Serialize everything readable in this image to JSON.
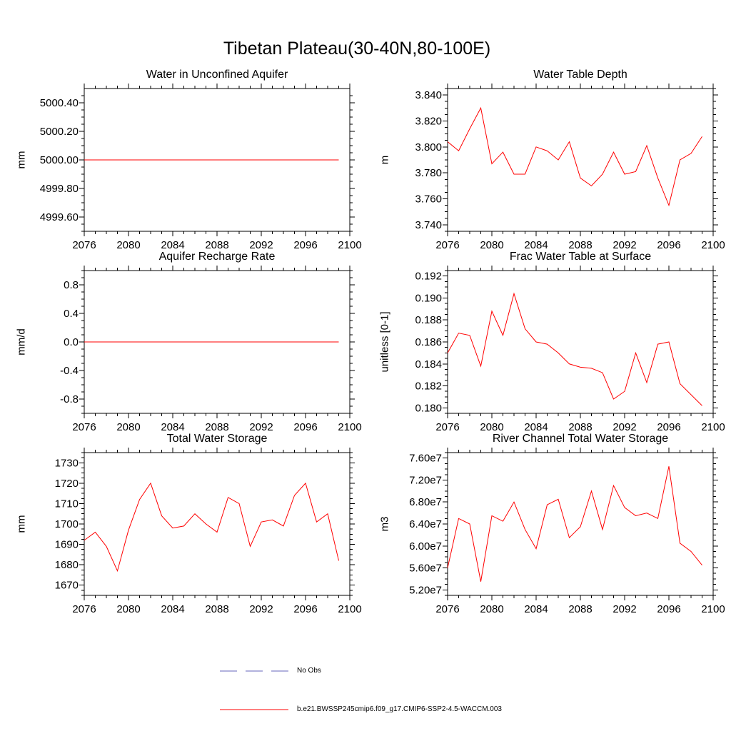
{
  "header": {
    "title": "Tibetan Plateau(30-40N,80-100E)"
  },
  "chart_data": [
    {
      "type": "line",
      "title": "Water in Unconfined Aquifer",
      "ylabel": "mm",
      "xlim": [
        2076,
        2100
      ],
      "ylim": [
        4999.5,
        5000.5
      ],
      "xminor_step": 1,
      "yminor_step": 0.05,
      "xticks": [
        {
          "v": 2076,
          "label": "2076"
        },
        {
          "v": 2080,
          "label": "2080"
        },
        {
          "v": 2084,
          "label": "2084"
        },
        {
          "v": 2088,
          "label": "2088"
        },
        {
          "v": 2092,
          "label": "2092"
        },
        {
          "v": 2096,
          "label": "2096"
        },
        {
          "v": 2100,
          "label": "2100"
        }
      ],
      "yticks": [
        {
          "v": 4999.6,
          "label": "4999.60"
        },
        {
          "v": 4999.8,
          "label": "4999.80"
        },
        {
          "v": 5000.0,
          "label": "5000.00"
        },
        {
          "v": 5000.2,
          "label": "5000.20"
        },
        {
          "v": 5000.4,
          "label": "5000.40"
        }
      ],
      "x": [
        2076,
        2077,
        2078,
        2079,
        2080,
        2081,
        2082,
        2083,
        2084,
        2085,
        2086,
        2087,
        2088,
        2089,
        2090,
        2091,
        2092,
        2093,
        2094,
        2095,
        2096,
        2097,
        2098,
        2099
      ],
      "series": [
        {
          "name": "b.e21.BWSSP245cmip6.f09_g17.CMIP6-SSP2-4.5-WACCM.003",
          "color": "#ff0000",
          "values": [
            5000,
            5000,
            5000,
            5000,
            5000,
            5000,
            5000,
            5000,
            5000,
            5000,
            5000,
            5000,
            5000,
            5000,
            5000,
            5000,
            5000,
            5000,
            5000,
            5000,
            5000,
            5000,
            5000,
            5000
          ]
        }
      ]
    },
    {
      "type": "line",
      "title": "Water Table Depth",
      "ylabel": "m",
      "xlim": [
        2076,
        2100
      ],
      "ylim": [
        3.735,
        3.845
      ],
      "xminor_step": 1,
      "yminor_step": 0.005,
      "xticks": [
        {
          "v": 2076,
          "label": "2076"
        },
        {
          "v": 2080,
          "label": "2080"
        },
        {
          "v": 2084,
          "label": "2084"
        },
        {
          "v": 2088,
          "label": "2088"
        },
        {
          "v": 2092,
          "label": "2092"
        },
        {
          "v": 2096,
          "label": "2096"
        },
        {
          "v": 2100,
          "label": "2100"
        }
      ],
      "yticks": [
        {
          "v": 3.74,
          "label": "3.740"
        },
        {
          "v": 3.76,
          "label": "3.760"
        },
        {
          "v": 3.78,
          "label": "3.780"
        },
        {
          "v": 3.8,
          "label": "3.800"
        },
        {
          "v": 3.82,
          "label": "3.820"
        },
        {
          "v": 3.84,
          "label": "3.840"
        }
      ],
      "x": [
        2076,
        2077,
        2078,
        2079,
        2080,
        2081,
        2082,
        2083,
        2084,
        2085,
        2086,
        2087,
        2088,
        2089,
        2090,
        2091,
        2092,
        2093,
        2094,
        2095,
        2096,
        2097,
        2098,
        2099
      ],
      "series": [
        {
          "name": "b.e21.BWSSP245cmip6.f09_g17.CMIP6-SSP2-4.5-WACCM.003",
          "color": "#ff0000",
          "values": [
            3.804,
            3.797,
            3.814,
            3.83,
            3.787,
            3.796,
            3.779,
            3.779,
            3.8,
            3.797,
            3.79,
            3.804,
            3.776,
            3.77,
            3.779,
            3.796,
            3.779,
            3.781,
            3.801,
            3.776,
            3.755,
            3.79,
            3.795,
            3.808
          ]
        }
      ]
    },
    {
      "type": "line",
      "title": "Aquifer Recharge Rate",
      "ylabel": "mm/d",
      "xlim": [
        2076,
        2100
      ],
      "ylim": [
        -1.0,
        1.0
      ],
      "xminor_step": 1,
      "yminor_step": 0.1,
      "xticks": [
        {
          "v": 2076,
          "label": "2076"
        },
        {
          "v": 2080,
          "label": "2080"
        },
        {
          "v": 2084,
          "label": "2084"
        },
        {
          "v": 2088,
          "label": "2088"
        },
        {
          "v": 2092,
          "label": "2092"
        },
        {
          "v": 2096,
          "label": "2096"
        },
        {
          "v": 2100,
          "label": "2100"
        }
      ],
      "yticks": [
        {
          "v": -0.8,
          "label": "-0.8"
        },
        {
          "v": -0.4,
          "label": "-0.4"
        },
        {
          "v": 0.0,
          "label": "0.0"
        },
        {
          "v": 0.4,
          "label": "0.4"
        },
        {
          "v": 0.8,
          "label": "0.8"
        }
      ],
      "x": [
        2076,
        2077,
        2078,
        2079,
        2080,
        2081,
        2082,
        2083,
        2084,
        2085,
        2086,
        2087,
        2088,
        2089,
        2090,
        2091,
        2092,
        2093,
        2094,
        2095,
        2096,
        2097,
        2098,
        2099
      ],
      "series": [
        {
          "name": "b.e21.BWSSP245cmip6.f09_g17.CMIP6-SSP2-4.5-WACCM.003",
          "color": "#ff0000",
          "values": [
            0,
            0,
            0,
            0,
            0,
            0,
            0,
            0,
            0,
            0,
            0,
            0,
            0,
            0,
            0,
            0,
            0,
            0,
            0,
            0,
            0,
            0,
            0,
            0
          ]
        }
      ]
    },
    {
      "type": "line",
      "title": "Frac Water Table at Surface",
      "ylabel": "unitless [0-1]",
      "xlim": [
        2076,
        2100
      ],
      "ylim": [
        0.1795,
        0.1925
      ],
      "xminor_step": 1,
      "yminor_step": 0.0005,
      "xticks": [
        {
          "v": 2076,
          "label": "2076"
        },
        {
          "v": 2080,
          "label": "2080"
        },
        {
          "v": 2084,
          "label": "2084"
        },
        {
          "v": 2088,
          "label": "2088"
        },
        {
          "v": 2092,
          "label": "2092"
        },
        {
          "v": 2096,
          "label": "2096"
        },
        {
          "v": 2100,
          "label": "2100"
        }
      ],
      "yticks": [
        {
          "v": 0.18,
          "label": "0.180"
        },
        {
          "v": 0.182,
          "label": "0.182"
        },
        {
          "v": 0.184,
          "label": "0.184"
        },
        {
          "v": 0.186,
          "label": "0.186"
        },
        {
          "v": 0.188,
          "label": "0.188"
        },
        {
          "v": 0.19,
          "label": "0.190"
        },
        {
          "v": 0.192,
          "label": "0.192"
        }
      ],
      "x": [
        2076,
        2077,
        2078,
        2079,
        2080,
        2081,
        2082,
        2083,
        2084,
        2085,
        2086,
        2087,
        2088,
        2089,
        2090,
        2091,
        2092,
        2093,
        2094,
        2095,
        2096,
        2097,
        2098,
        2099
      ],
      "series": [
        {
          "name": "b.e21.BWSSP245cmip6.f09_g17.CMIP6-SSP2-4.5-WACCM.003",
          "color": "#ff0000",
          "values": [
            0.185,
            0.1868,
            0.1866,
            0.1838,
            0.1888,
            0.1866,
            0.1904,
            0.1872,
            0.186,
            0.1858,
            0.185,
            0.184,
            0.1837,
            0.1836,
            0.1832,
            0.1808,
            0.1815,
            0.185,
            0.1823,
            0.1858,
            0.186,
            0.1822,
            0.1812,
            0.1802
          ]
        }
      ]
    },
    {
      "type": "line",
      "title": "Total Water Storage",
      "ylabel": "mm",
      "xlim": [
        2076,
        2100
      ],
      "ylim": [
        1665,
        1735
      ],
      "xminor_step": 1,
      "yminor_step": 2.5,
      "xticks": [
        {
          "v": 2076,
          "label": "2076"
        },
        {
          "v": 2080,
          "label": "2080"
        },
        {
          "v": 2084,
          "label": "2084"
        },
        {
          "v": 2088,
          "label": "2088"
        },
        {
          "v": 2092,
          "label": "2092"
        },
        {
          "v": 2096,
          "label": "2096"
        },
        {
          "v": 2100,
          "label": "2100"
        }
      ],
      "yticks": [
        {
          "v": 1670,
          "label": "1670"
        },
        {
          "v": 1680,
          "label": "1680"
        },
        {
          "v": 1690,
          "label": "1690"
        },
        {
          "v": 1700,
          "label": "1700"
        },
        {
          "v": 1710,
          "label": "1710"
        },
        {
          "v": 1720,
          "label": "1720"
        },
        {
          "v": 1730,
          "label": "1730"
        }
      ],
      "x": [
        2076,
        2077,
        2078,
        2079,
        2080,
        2081,
        2082,
        2083,
        2084,
        2085,
        2086,
        2087,
        2088,
        2089,
        2090,
        2091,
        2092,
        2093,
        2094,
        2095,
        2096,
        2097,
        2098,
        2099
      ],
      "series": [
        {
          "name": "b.e21.BWSSP245cmip6.f09_g17.CMIP6-SSP2-4.5-WACCM.003",
          "color": "#ff0000",
          "values": [
            1692,
            1696,
            1689,
            1677,
            1697,
            1712,
            1720,
            1704,
            1698,
            1699,
            1705,
            1700,
            1696,
            1713,
            1710,
            1689,
            1701,
            1702,
            1699,
            1714,
            1720,
            1701,
            1705,
            1682
          ]
        }
      ]
    },
    {
      "type": "line",
      "title": "River Channel Total Water Storage",
      "ylabel": "m3",
      "xlim": [
        2076,
        2100
      ],
      "ylim": [
        51000000.0,
        77000000.0
      ],
      "xminor_step": 1,
      "yminor_step": 1000000.0,
      "xticks": [
        {
          "v": 2076,
          "label": "2076"
        },
        {
          "v": 2080,
          "label": "2080"
        },
        {
          "v": 2084,
          "label": "2084"
        },
        {
          "v": 2088,
          "label": "2088"
        },
        {
          "v": 2092,
          "label": "2092"
        },
        {
          "v": 2096,
          "label": "2096"
        },
        {
          "v": 2100,
          "label": "2100"
        }
      ],
      "yticks": [
        {
          "v": 52000000.0,
          "label": "5.20e7"
        },
        {
          "v": 56000000.0,
          "label": "5.60e7"
        },
        {
          "v": 60000000.0,
          "label": "6.00e7"
        },
        {
          "v": 64000000.0,
          "label": "6.40e7"
        },
        {
          "v": 68000000.0,
          "label": "6.80e7"
        },
        {
          "v": 72000000.0,
          "label": "7.20e7"
        },
        {
          "v": 76000000.0,
          "label": "7.60e7"
        }
      ],
      "x": [
        2076,
        2077,
        2078,
        2079,
        2080,
        2081,
        2082,
        2083,
        2084,
        2085,
        2086,
        2087,
        2088,
        2089,
        2090,
        2091,
        2092,
        2093,
        2094,
        2095,
        2096,
        2097,
        2098,
        2099
      ],
      "series": [
        {
          "name": "b.e21.BWSSP245cmip6.f09_g17.CMIP6-SSP2-4.5-WACCM.003",
          "color": "#ff0000",
          "values": [
            56000000.0,
            65000000.0,
            64000000.0,
            53500000.0,
            65500000.0,
            64500000.0,
            68000000.0,
            63000000.0,
            59500000.0,
            67500000.0,
            68500000.0,
            61500000.0,
            63500000.0,
            70000000.0,
            63000000.0,
            71000000.0,
            67000000.0,
            65500000.0,
            66000000.0,
            65000000.0,
            74500000.0,
            60500000.0,
            59000000.0,
            56500000.0
          ]
        }
      ]
    }
  ],
  "legend": {
    "position": "bottom",
    "items": [
      {
        "label": "No Obs",
        "style": "dashed",
        "color": "#6666bb"
      },
      {
        "label": "b.e21.BWSSP245cmip6.f09_g17.CMIP6-SSP2-4.5-WACCM.003",
        "style": "solid",
        "color": "#ff0000"
      }
    ]
  }
}
